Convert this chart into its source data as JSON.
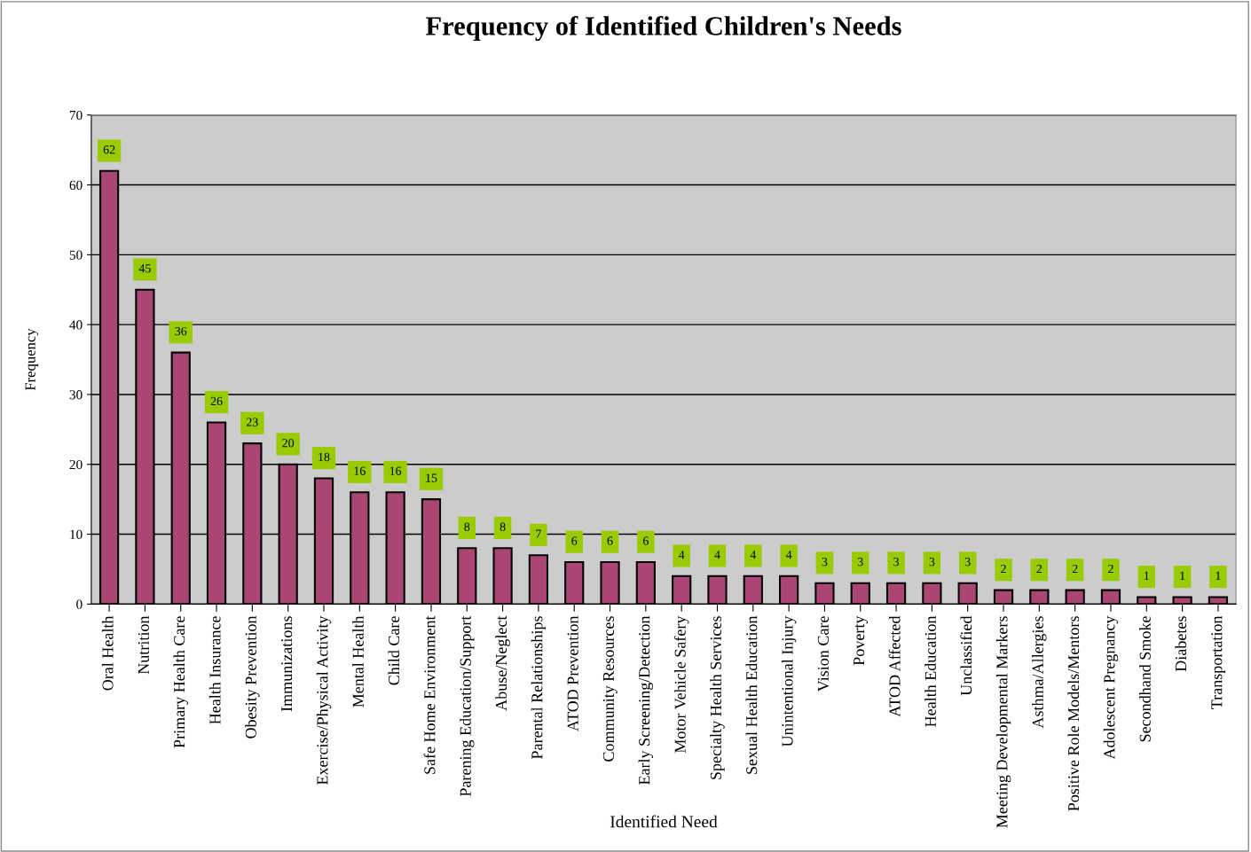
{
  "chart_data": {
    "type": "bar",
    "title": "Frequency of Identified Children's Needs",
    "xlabel": "Identified Need",
    "ylabel": "Frequency",
    "categories": [
      "Oral Health",
      "Nutrition",
      "Primary Health Care",
      "Health Insurance",
      "Obesity Prevention",
      "Immunizations",
      "Exercise/Physical Activity",
      "Mental Health",
      "Child Care",
      "Safe Home Environment",
      "Parening Education/Support",
      "Abuse/Neglect",
      "Parental Relationships",
      "ATOD Prevention",
      "Community Resources",
      "Early Screening/Detection",
      "Motor Vehicle Safery",
      "Specialty Health Services",
      "Sexual Health Education",
      "Unintentional Injury",
      "Vision Care",
      "Poverty",
      "ATOD Affected",
      "Health Education",
      "Unclassified",
      "Meeting Developmental Markers",
      "Asthma/Allergies",
      "Positive Role Models/Mentors",
      "Adolescent Pregnancy",
      "Secondhand Smoke",
      "Diabetes",
      "Transportation"
    ],
    "values": [
      62,
      45,
      36,
      26,
      23,
      20,
      18,
      16,
      16,
      15,
      8,
      8,
      7,
      6,
      6,
      6,
      4,
      4,
      4,
      4,
      3,
      3,
      3,
      3,
      3,
      2,
      2,
      2,
      2,
      1,
      1,
      1
    ],
    "color": "#aa4673",
    "ylim": [
      0,
      70
    ],
    "yticks": [
      0,
      10,
      20,
      30,
      40,
      50,
      60,
      70
    ],
    "grid": "y",
    "data_labels": true
  }
}
